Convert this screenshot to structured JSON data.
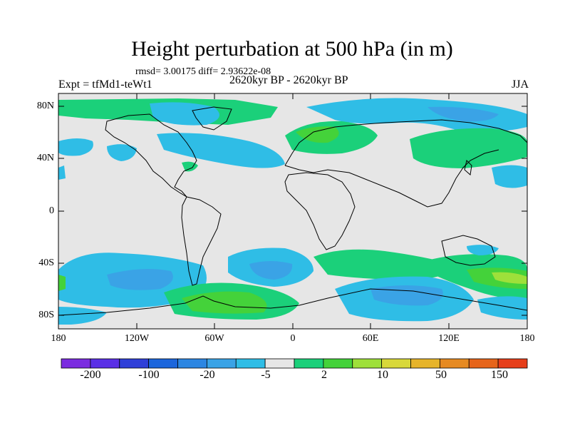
{
  "header": {
    "title": "Height perturbation at 500 hPa (in m)",
    "stats": "rmsd= 3.00175 diff= 2.93622e-08",
    "left_label": "Expt = tfMd1-teWt1",
    "center_label": "2620kyr BP - 2620kyr BP",
    "right_label": "JJA"
  },
  "axes": {
    "lat_ticks": [
      "80N",
      "40N",
      "0",
      "40S",
      "80S"
    ],
    "lon_ticks": [
      "180",
      "120W",
      "60W",
      "0",
      "60E",
      "120E",
      "180"
    ]
  },
  "colorbar": {
    "colors": [
      "#7b2ce0",
      "#5a2fe6",
      "#2f3fd8",
      "#1c66dc",
      "#2c86e2",
      "#3aa3e6",
      "#2fbde6",
      "#e6e6e6",
      "#1bd07a",
      "#44d23a",
      "#9ee03a",
      "#d8d83a",
      "#e6b42a",
      "#e68a22",
      "#e6641a",
      "#e63e1a"
    ],
    "labels": [
      "-200",
      "-100",
      "-20",
      "-5",
      "2",
      "10",
      "50",
      "150"
    ]
  },
  "map_colors": {
    "background": "#e6e6e6",
    "negative_light": "#2fbde6",
    "negative_mid": "#3aa3e6",
    "negative_dark": "#2c86e2",
    "positive_light": "#1bd07a",
    "positive_mid": "#44d23a",
    "positive_strong": "#9ee03a",
    "coast": "#000000"
  }
}
